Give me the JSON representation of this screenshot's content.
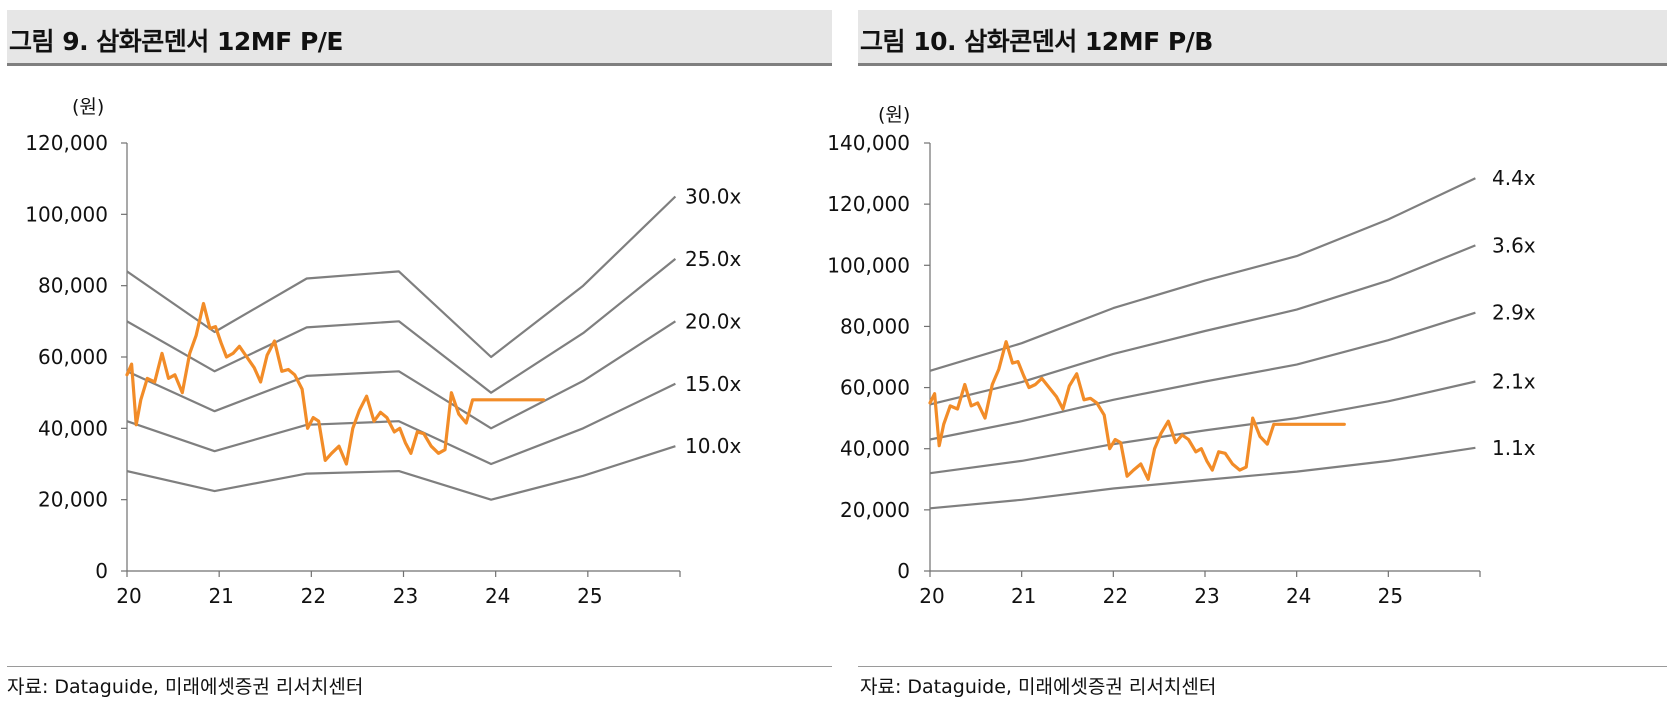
{
  "colors": {
    "band_line": "#7f7f7f",
    "price_line": "#f28c28",
    "axis": "#707070",
    "title_bg": "#e6e6e6"
  },
  "source": "자료: Dataguide, 미래에셋증권 리서치센터",
  "chart_data": [
    {
      "type": "line",
      "title": "그림 9. 삼화콘덴서 12MF P/E",
      "ylabel": "(원)",
      "ylim": [
        0,
        120000
      ],
      "yticks": [
        "0",
        "20,000",
        "40,000",
        "60,000",
        "80,000",
        "100,000",
        "120,000"
      ],
      "xlim": [
        20,
        26
      ],
      "xticks": [
        "20",
        "21",
        "22",
        "23",
        "24",
        "25"
      ],
      "bands": [
        {
          "name": "30.0x",
          "x": [
            20,
            20.95,
            21.95,
            22.95,
            23.95,
            24.95,
            25.95
          ],
          "y": [
            84000,
            67000,
            82000,
            84000,
            60000,
            80000,
            105000
          ]
        },
        {
          "name": "25.0x",
          "x": [
            20,
            20.95,
            21.95,
            22.95,
            23.95,
            24.95,
            25.95
          ],
          "y": [
            70000,
            56000,
            68300,
            70000,
            50000,
            66700,
            87500
          ]
        },
        {
          "name": "20.0x",
          "x": [
            20,
            20.95,
            21.95,
            22.95,
            23.95,
            24.95,
            25.95
          ],
          "y": [
            56000,
            44800,
            54700,
            56000,
            40000,
            53300,
            70000
          ]
        },
        {
          "name": "15.0x",
          "x": [
            20,
            20.95,
            21.95,
            22.95,
            23.95,
            24.95,
            25.95
          ],
          "y": [
            42000,
            33600,
            41000,
            42000,
            30000,
            40000,
            52500
          ]
        },
        {
          "name": "10.0x",
          "x": [
            20,
            20.95,
            21.95,
            22.95,
            23.95,
            24.95,
            25.95
          ],
          "y": [
            28000,
            22400,
            27300,
            28000,
            20000,
            26700,
            35000
          ]
        }
      ],
      "price": {
        "x": [
          20.0,
          20.05,
          20.1,
          20.15,
          20.22,
          20.3,
          20.38,
          20.45,
          20.52,
          20.6,
          20.68,
          20.75,
          20.83,
          20.9,
          20.96,
          21.02,
          21.08,
          21.15,
          21.22,
          21.3,
          21.38,
          21.45,
          21.52,
          21.6,
          21.68,
          21.75,
          21.82,
          21.9,
          21.96,
          22.02,
          22.08,
          22.15,
          22.22,
          22.3,
          22.38,
          22.45,
          22.52,
          22.6,
          22.68,
          22.75,
          22.82,
          22.9,
          22.96,
          23.02,
          23.08,
          23.15,
          23.22,
          23.3,
          23.38,
          23.45,
          23.52,
          23.6,
          23.68,
          23.75,
          23.82,
          23.9,
          23.96,
          24.02,
          24.08,
          24.15,
          24.22,
          24.3,
          24.38,
          24.45,
          24.52
        ],
        "y": [
          55000,
          58000,
          41000,
          48000,
          54000,
          53000,
          61000,
          54000,
          55000,
          50000,
          61000,
          66000,
          75000,
          68000,
          68500,
          64000,
          60000,
          61000,
          63000,
          60000,
          57000,
          53000,
          60500,
          64500,
          56000,
          56500,
          55000,
          51000,
          40000,
          43000,
          42000,
          31000,
          33000,
          35000,
          30000,
          40000,
          45000,
          49000,
          42000,
          44500,
          43000,
          39000,
          40000,
          36000,
          33000,
          39000,
          38500,
          35000,
          33000,
          34000,
          50000,
          44000,
          41500,
          48000,
          48000,
          48000,
          48000,
          48000,
          48000,
          48000,
          48000,
          48000,
          48000,
          48000,
          48000
        ]
      }
    },
    {
      "type": "line",
      "title": "그림 10. 삼화콘덴서 12MF P/B",
      "ylabel": "(원)",
      "ylim": [
        0,
        140000
      ],
      "yticks": [
        "0",
        "20,000",
        "40,000",
        "60,000",
        "80,000",
        "100,000",
        "120,000",
        "140,000"
      ],
      "xlim": [
        20,
        26
      ],
      "xticks": [
        "20",
        "21",
        "22",
        "23",
        "24",
        "25"
      ],
      "bands": [
        {
          "name": "4.4x",
          "x": [
            20,
            21,
            22,
            23,
            24,
            25,
            25.95
          ],
          "y": [
            65500,
            74500,
            86000,
            95000,
            103000,
            115000,
            128500
          ]
        },
        {
          "name": "3.6x",
          "x": [
            20,
            21,
            22,
            23,
            24,
            25,
            25.95
          ],
          "y": [
            54500,
            61800,
            71000,
            78500,
            85500,
            95000,
            106500
          ]
        },
        {
          "name": "2.9x",
          "x": [
            20,
            21,
            22,
            23,
            24,
            25,
            25.95
          ],
          "y": [
            43000,
            49000,
            56000,
            62000,
            67500,
            75500,
            84500
          ]
        },
        {
          "name": "2.1x",
          "x": [
            20,
            21,
            22,
            23,
            24,
            25,
            25.95
          ],
          "y": [
            32000,
            36000,
            41500,
            46000,
            50000,
            55500,
            62000
          ]
        },
        {
          "name": "1.1x",
          "x": [
            20,
            21,
            22,
            23,
            24,
            25,
            25.95
          ],
          "y": [
            20500,
            23300,
            27000,
            29800,
            32500,
            36000,
            40300
          ]
        }
      ],
      "price": {
        "x": [
          20.0,
          20.05,
          20.1,
          20.15,
          20.22,
          20.3,
          20.38,
          20.45,
          20.52,
          20.6,
          20.68,
          20.75,
          20.83,
          20.9,
          20.96,
          21.02,
          21.08,
          21.15,
          21.22,
          21.3,
          21.38,
          21.45,
          21.52,
          21.6,
          21.68,
          21.75,
          21.82,
          21.9,
          21.96,
          22.02,
          22.08,
          22.15,
          22.22,
          22.3,
          22.38,
          22.45,
          22.52,
          22.6,
          22.68,
          22.75,
          22.82,
          22.9,
          22.96,
          23.02,
          23.08,
          23.15,
          23.22,
          23.3,
          23.38,
          23.45,
          23.52,
          23.6,
          23.68,
          23.75,
          23.82,
          23.9,
          23.96,
          24.02,
          24.08,
          24.15,
          24.22,
          24.3,
          24.38,
          24.45,
          24.52
        ],
        "y": [
          55000,
          58000,
          41000,
          48000,
          54000,
          53000,
          61000,
          54000,
          55000,
          50000,
          61000,
          66000,
          75000,
          68000,
          68500,
          64000,
          60000,
          61000,
          63000,
          60000,
          57000,
          53000,
          60500,
          64500,
          56000,
          56500,
          55000,
          51000,
          40000,
          43000,
          42000,
          31000,
          33000,
          35000,
          30000,
          40000,
          45000,
          49000,
          42000,
          44500,
          43000,
          39000,
          40000,
          36000,
          33000,
          39000,
          38500,
          35000,
          33000,
          34000,
          50000,
          44000,
          41500,
          48000,
          48000,
          48000,
          48000,
          48000,
          48000,
          48000,
          48000,
          48000,
          48000,
          48000,
          48000
        ]
      }
    }
  ]
}
